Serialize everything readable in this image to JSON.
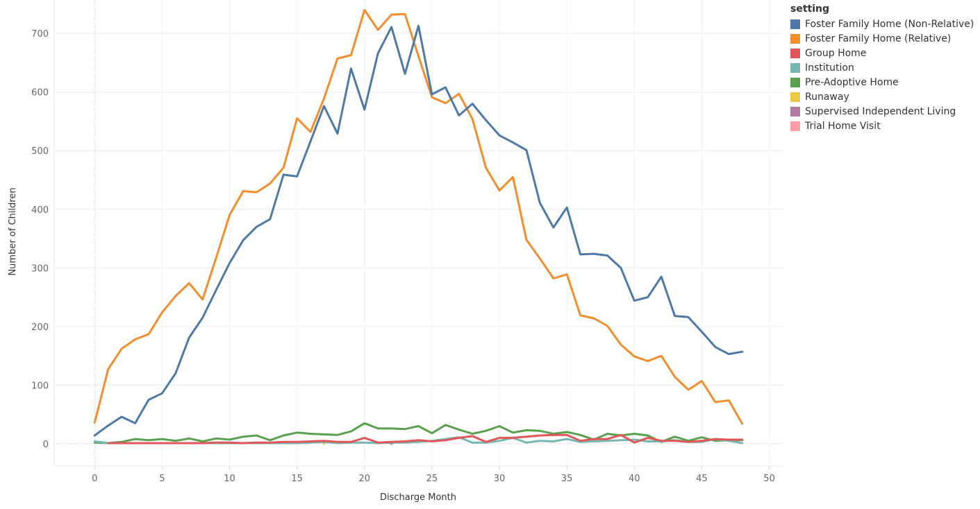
{
  "legend": {
    "title": "setting"
  },
  "chart_data": {
    "type": "line",
    "xlabel": "Discharge Month",
    "ylabel": "Number of Children",
    "xlim": [
      -3,
      51
    ],
    "ylim": [
      -38,
      757
    ],
    "xticks": [
      0,
      5,
      10,
      15,
      20,
      25,
      30,
      35,
      40,
      45,
      50
    ],
    "yticks": [
      0,
      100,
      200,
      300,
      400,
      500,
      600,
      700
    ],
    "grid": true,
    "legend_position": "top-right",
    "series": [
      {
        "name": "Foster Family Home (Non-Relative)",
        "color": "#4e79a7",
        "x": [
          0,
          1,
          2,
          3,
          4,
          5,
          6,
          7,
          8,
          9,
          10,
          11,
          12,
          13,
          14,
          15,
          16,
          17,
          18,
          19,
          20,
          21,
          22,
          23,
          24,
          25,
          26,
          27,
          28,
          29,
          30,
          31,
          32,
          33,
          34,
          35,
          36,
          37,
          38,
          39,
          40,
          41,
          42,
          43,
          44,
          45,
          46,
          47,
          48
        ],
        "y": [
          14,
          31,
          46,
          35,
          75,
          86,
          120,
          181,
          215,
          262,
          308,
          347,
          370,
          383,
          459,
          456,
          516,
          576,
          529,
          640,
          570,
          666,
          711,
          631,
          713,
          596,
          608,
          560,
          580,
          552,
          526,
          514,
          501,
          411,
          369,
          403,
          323,
          324,
          321,
          300,
          244,
          250,
          285,
          218,
          216,
          191,
          165,
          153,
          157
        ]
      },
      {
        "name": "Foster Family Home (Relative)",
        "color": "#f28e2b",
        "x": [
          0,
          1,
          2,
          3,
          4,
          5,
          6,
          7,
          8,
          9,
          10,
          11,
          12,
          13,
          14,
          15,
          16,
          17,
          18,
          19,
          20,
          21,
          22,
          23,
          24,
          25,
          26,
          27,
          28,
          29,
          30,
          31,
          32,
          33,
          34,
          35,
          36,
          37,
          38,
          39,
          40,
          41,
          42,
          43,
          44,
          45,
          46,
          47,
          48
        ],
        "y": [
          36,
          127,
          162,
          178,
          187,
          224,
          252,
          274,
          246,
          317,
          390,
          431,
          429,
          444,
          471,
          555,
          532,
          589,
          657,
          663,
          740,
          706,
          732,
          733,
          661,
          591,
          581,
          597,
          554,
          471,
          432,
          455,
          348,
          316,
          282,
          289,
          219,
          214,
          201,
          169,
          149,
          141,
          150,
          114,
          92,
          107,
          71,
          74,
          34
        ]
      },
      {
        "name": "Group Home",
        "color": "#e15759",
        "x": [
          1,
          2,
          3,
          4,
          5,
          6,
          7,
          8,
          9,
          10,
          11,
          12,
          13,
          14,
          15,
          16,
          17,
          18,
          19,
          20,
          21,
          22,
          23,
          24,
          25,
          26,
          27,
          28,
          29,
          30,
          31,
          32,
          33,
          34,
          35,
          36,
          37,
          38,
          39,
          40,
          41,
          42,
          43,
          44,
          45,
          46,
          47,
          48
        ],
        "y": [
          1,
          1,
          1,
          1,
          1,
          1,
          1,
          1,
          2,
          2,
          1,
          2,
          2,
          3,
          3,
          4,
          5,
          3,
          3,
          10,
          2,
          3,
          4,
          6,
          4,
          6,
          10,
          13,
          3,
          10,
          10,
          12,
          14,
          15,
          15,
          5,
          8,
          8,
          15,
          2,
          10,
          5,
          5,
          3,
          5,
          8,
          7,
          7
        ]
      },
      {
        "name": "Institution",
        "color": "#76b7b2",
        "x": [
          0,
          1,
          2,
          3,
          4,
          5,
          6,
          7,
          8,
          9,
          10,
          11,
          12,
          13,
          14,
          15,
          16,
          17,
          18,
          19,
          20,
          21,
          22,
          23,
          24,
          25,
          26,
          27,
          28,
          29,
          30,
          31,
          32,
          33,
          34,
          35,
          36,
          37,
          38,
          39,
          40,
          41,
          42,
          43,
          44,
          45,
          46,
          47,
          48
        ],
        "y": [
          4,
          1,
          1,
          1,
          1,
          1,
          1,
          1,
          1,
          1,
          1,
          1,
          1,
          1,
          1,
          1,
          2,
          3,
          1,
          2,
          2,
          1,
          2,
          2,
          3,
          5,
          8,
          11,
          2,
          2,
          5,
          10,
          2,
          5,
          4,
          8,
          3,
          4,
          5,
          6,
          7,
          4,
          4,
          6,
          3,
          3,
          8,
          5,
          1
        ]
      },
      {
        "name": "Pre-Adoptive Home",
        "color": "#59a14f",
        "x": [
          0,
          1,
          2,
          3,
          4,
          5,
          6,
          7,
          8,
          9,
          10,
          11,
          12,
          13,
          14,
          15,
          16,
          17,
          18,
          19,
          20,
          21,
          22,
          23,
          24,
          25,
          26,
          27,
          28,
          29,
          30,
          31,
          32,
          33,
          34,
          35,
          36,
          37,
          38,
          39,
          40,
          41,
          42,
          43,
          44,
          45,
          46,
          47,
          48
        ],
        "y": [
          2,
          1,
          3,
          8,
          6,
          8,
          5,
          9,
          4,
          9,
          7,
          12,
          14,
          6,
          14,
          19,
          17,
          16,
          15,
          21,
          35,
          26,
          26,
          25,
          30,
          18,
          32,
          24,
          17,
          22,
          30,
          19,
          23,
          22,
          17,
          20,
          15,
          7,
          17,
          14,
          17,
          14,
          3,
          12,
          5,
          11,
          5,
          6,
          6
        ]
      },
      {
        "name": "Runaway",
        "color": "#edc948",
        "x": [
          17
        ],
        "y": [
          1
        ]
      },
      {
        "name": "Supervised Independent Living",
        "color": "#b07aa1",
        "x": [
          22
        ],
        "y": [
          1
        ]
      },
      {
        "name": "Trial Home Visit",
        "color": "#ff9da7",
        "x": [],
        "y": []
      }
    ]
  }
}
